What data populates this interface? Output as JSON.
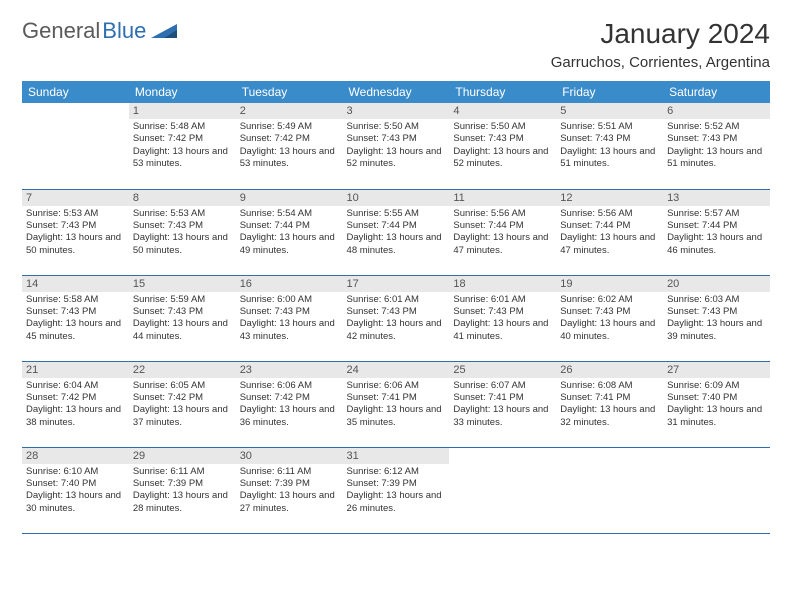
{
  "brand": {
    "part1": "General",
    "part2": "Blue"
  },
  "title": "January 2024",
  "location": "Garruchos, Corrientes, Argentina",
  "weekdays": [
    "Sunday",
    "Monday",
    "Tuesday",
    "Wednesday",
    "Thursday",
    "Friday",
    "Saturday"
  ],
  "colors": {
    "header_bg": "#3a8bc9",
    "daynum_bg": "#e8e8e8",
    "row_border": "#2f6fb0",
    "logo_gray": "#5a5a5a",
    "logo_blue": "#2f6fb0"
  },
  "weeks": [
    [
      {
        "empty": true
      },
      {
        "n": "1",
        "sr": "5:48 AM",
        "ss": "7:42 PM",
        "dl": "13 hours and 53 minutes."
      },
      {
        "n": "2",
        "sr": "5:49 AM",
        "ss": "7:42 PM",
        "dl": "13 hours and 53 minutes."
      },
      {
        "n": "3",
        "sr": "5:50 AM",
        "ss": "7:43 PM",
        "dl": "13 hours and 52 minutes."
      },
      {
        "n": "4",
        "sr": "5:50 AM",
        "ss": "7:43 PM",
        "dl": "13 hours and 52 minutes."
      },
      {
        "n": "5",
        "sr": "5:51 AM",
        "ss": "7:43 PM",
        "dl": "13 hours and 51 minutes."
      },
      {
        "n": "6",
        "sr": "5:52 AM",
        "ss": "7:43 PM",
        "dl": "13 hours and 51 minutes."
      }
    ],
    [
      {
        "n": "7",
        "sr": "5:53 AM",
        "ss": "7:43 PM",
        "dl": "13 hours and 50 minutes."
      },
      {
        "n": "8",
        "sr": "5:53 AM",
        "ss": "7:43 PM",
        "dl": "13 hours and 50 minutes."
      },
      {
        "n": "9",
        "sr": "5:54 AM",
        "ss": "7:44 PM",
        "dl": "13 hours and 49 minutes."
      },
      {
        "n": "10",
        "sr": "5:55 AM",
        "ss": "7:44 PM",
        "dl": "13 hours and 48 minutes."
      },
      {
        "n": "11",
        "sr": "5:56 AM",
        "ss": "7:44 PM",
        "dl": "13 hours and 47 minutes."
      },
      {
        "n": "12",
        "sr": "5:56 AM",
        "ss": "7:44 PM",
        "dl": "13 hours and 47 minutes."
      },
      {
        "n": "13",
        "sr": "5:57 AM",
        "ss": "7:44 PM",
        "dl": "13 hours and 46 minutes."
      }
    ],
    [
      {
        "n": "14",
        "sr": "5:58 AM",
        "ss": "7:43 PM",
        "dl": "13 hours and 45 minutes."
      },
      {
        "n": "15",
        "sr": "5:59 AM",
        "ss": "7:43 PM",
        "dl": "13 hours and 44 minutes."
      },
      {
        "n": "16",
        "sr": "6:00 AM",
        "ss": "7:43 PM",
        "dl": "13 hours and 43 minutes."
      },
      {
        "n": "17",
        "sr": "6:01 AM",
        "ss": "7:43 PM",
        "dl": "13 hours and 42 minutes."
      },
      {
        "n": "18",
        "sr": "6:01 AM",
        "ss": "7:43 PM",
        "dl": "13 hours and 41 minutes."
      },
      {
        "n": "19",
        "sr": "6:02 AM",
        "ss": "7:43 PM",
        "dl": "13 hours and 40 minutes."
      },
      {
        "n": "20",
        "sr": "6:03 AM",
        "ss": "7:43 PM",
        "dl": "13 hours and 39 minutes."
      }
    ],
    [
      {
        "n": "21",
        "sr": "6:04 AM",
        "ss": "7:42 PM",
        "dl": "13 hours and 38 minutes."
      },
      {
        "n": "22",
        "sr": "6:05 AM",
        "ss": "7:42 PM",
        "dl": "13 hours and 37 minutes."
      },
      {
        "n": "23",
        "sr": "6:06 AM",
        "ss": "7:42 PM",
        "dl": "13 hours and 36 minutes."
      },
      {
        "n": "24",
        "sr": "6:06 AM",
        "ss": "7:41 PM",
        "dl": "13 hours and 35 minutes."
      },
      {
        "n": "25",
        "sr": "6:07 AM",
        "ss": "7:41 PM",
        "dl": "13 hours and 33 minutes."
      },
      {
        "n": "26",
        "sr": "6:08 AM",
        "ss": "7:41 PM",
        "dl": "13 hours and 32 minutes."
      },
      {
        "n": "27",
        "sr": "6:09 AM",
        "ss": "7:40 PM",
        "dl": "13 hours and 31 minutes."
      }
    ],
    [
      {
        "n": "28",
        "sr": "6:10 AM",
        "ss": "7:40 PM",
        "dl": "13 hours and 30 minutes."
      },
      {
        "n": "29",
        "sr": "6:11 AM",
        "ss": "7:39 PM",
        "dl": "13 hours and 28 minutes."
      },
      {
        "n": "30",
        "sr": "6:11 AM",
        "ss": "7:39 PM",
        "dl": "13 hours and 27 minutes."
      },
      {
        "n": "31",
        "sr": "6:12 AM",
        "ss": "7:39 PM",
        "dl": "13 hours and 26 minutes."
      },
      {
        "empty": true
      },
      {
        "empty": true
      },
      {
        "empty": true
      }
    ]
  ],
  "labels": {
    "sunrise": "Sunrise: ",
    "sunset": "Sunset: ",
    "daylight": "Daylight: "
  }
}
